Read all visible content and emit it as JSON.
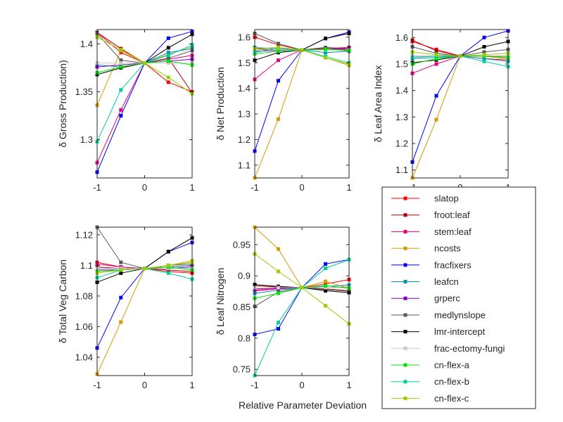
{
  "figure": {
    "xlabel": "Relative Parameter Deviation"
  },
  "chart_data": [
    {
      "type": "line",
      "ylabel": "δ Gross Production)",
      "x": [
        -1,
        -0.5,
        0,
        0.5,
        1
      ],
      "xlim": [
        -1,
        1
      ],
      "ylim": [
        1.26,
        1.415
      ],
      "xticks": [
        "-1",
        "0",
        "1"
      ],
      "yticks": [
        "1.3",
        "1.35",
        "1.4"
      ],
      "ytick_values": [
        1.3,
        1.35,
        1.4
      ],
      "series": [
        {
          "name": "slatop",
          "values": [
            1.412,
            1.391,
            1.38,
            1.36,
            1.35
          ]
        },
        {
          "name": "froot:leaf",
          "values": [
            1.412,
            1.395,
            1.38,
            1.385,
            1.349
          ]
        },
        {
          "name": "stem:leaf",
          "values": [
            1.276,
            1.331,
            1.38,
            1.384,
            1.388
          ]
        },
        {
          "name": "ncosts",
          "values": [
            1.336,
            1.393,
            1.38,
            1.389,
            1.397
          ]
        },
        {
          "name": "fracfixers",
          "values": [
            1.266,
            1.325,
            1.38,
            1.406,
            1.413
          ]
        },
        {
          "name": "leafcn",
          "values": [
            1.378,
            1.376,
            1.38,
            1.391,
            1.395
          ]
        },
        {
          "name": "grperc",
          "values": [
            1.376,
            1.378,
            1.38,
            1.382,
            1.384
          ]
        },
        {
          "name": "medlynslope",
          "values": [
            1.411,
            1.383,
            1.38,
            1.385,
            1.393
          ]
        },
        {
          "name": "lmr-intercept",
          "values": [
            1.368,
            1.375,
            1.38,
            1.396,
            1.41
          ]
        },
        {
          "name": "frac-ectomy-fungi",
          "values": [
            1.38,
            1.38,
            1.38,
            1.38,
            1.38
          ]
        },
        {
          "name": "cn-flex-a",
          "values": [
            1.37,
            1.376,
            1.38,
            1.382,
            1.378
          ]
        },
        {
          "name": "cn-flex-b",
          "values": [
            1.298,
            1.352,
            1.38,
            1.388,
            1.399
          ]
        },
        {
          "name": "cn-flex-c",
          "values": [
            1.407,
            1.394,
            1.38,
            1.365,
            1.348
          ]
        }
      ]
    },
    {
      "type": "line",
      "ylabel": "δ Net Production",
      "x": [
        -1,
        -0.5,
        0,
        0.5,
        1
      ],
      "xlim": [
        -1,
        1
      ],
      "ylim": [
        1.05,
        1.63
      ],
      "xticks": [
        "-1",
        "0",
        "1"
      ],
      "yticks": [
        "1.1",
        "1.2",
        "1.3",
        "1.4",
        "1.5",
        "1.6"
      ],
      "ytick_values": [
        1.1,
        1.2,
        1.3,
        1.4,
        1.5,
        1.6
      ],
      "series": [
        {
          "name": "slatop",
          "values": [
            1.6,
            1.57,
            1.55,
            1.56,
            1.55
          ]
        },
        {
          "name": "froot:leaf",
          "values": [
            1.555,
            1.55,
            1.55,
            1.556,
            1.56
          ]
        },
        {
          "name": "stem:leaf",
          "values": [
            1.435,
            1.51,
            1.55,
            1.56,
            1.555
          ]
        },
        {
          "name": "ncosts",
          "values": [
            1.05,
            1.28,
            1.55,
            1.52,
            1.49
          ]
        },
        {
          "name": "fracfixers",
          "values": [
            1.155,
            1.43,
            1.55,
            1.595,
            1.62
          ]
        },
        {
          "name": "leafcn",
          "values": [
            1.56,
            1.555,
            1.55,
            1.54,
            1.545
          ]
        },
        {
          "name": "grperc",
          "values": [
            1.545,
            1.548,
            1.55,
            1.552,
            1.555
          ]
        },
        {
          "name": "medlynslope",
          "values": [
            1.615,
            1.575,
            1.55,
            1.56,
            1.545
          ]
        },
        {
          "name": "lmr-intercept",
          "values": [
            1.51,
            1.54,
            1.55,
            1.595,
            1.615
          ]
        },
        {
          "name": "frac-ectomy-fungi",
          "values": [
            1.55,
            1.55,
            1.55,
            1.55,
            1.55
          ]
        },
        {
          "name": "cn-flex-a",
          "values": [
            1.535,
            1.545,
            1.55,
            1.553,
            1.548
          ]
        },
        {
          "name": "cn-flex-b",
          "values": [
            1.54,
            1.56,
            1.55,
            1.525,
            1.5
          ]
        },
        {
          "name": "cn-flex-c",
          "values": [
            1.555,
            1.56,
            1.55,
            1.52,
            1.495
          ]
        }
      ]
    },
    {
      "type": "line",
      "ylabel": "δ Leaf Area Index",
      "x": [
        -1,
        -0.5,
        0,
        0.5,
        1
      ],
      "xlim": [
        -1,
        1
      ],
      "ylim": [
        1.07,
        1.63
      ],
      "xticks": [
        "-1",
        "0",
        "1"
      ],
      "yticks": [
        "1.1",
        "1.2",
        "1.3",
        "1.4",
        "1.5",
        "1.6"
      ],
      "ytick_values": [
        1.1,
        1.2,
        1.3,
        1.4,
        1.5,
        1.6
      ],
      "series": [
        {
          "name": "slatop",
          "values": [
            1.585,
            1.555,
            1.53,
            1.52,
            1.515
          ]
        },
        {
          "name": "froot:leaf",
          "values": [
            1.59,
            1.55,
            1.53,
            1.53,
            1.52
          ]
        },
        {
          "name": "stem:leaf",
          "values": [
            1.465,
            1.5,
            1.53,
            1.53,
            1.53
          ]
        },
        {
          "name": "ncosts",
          "values": [
            1.07,
            1.29,
            1.53,
            1.53,
            1.52
          ]
        },
        {
          "name": "fracfixers",
          "values": [
            1.13,
            1.38,
            1.53,
            1.6,
            1.625
          ]
        },
        {
          "name": "leafcn",
          "values": [
            1.52,
            1.525,
            1.53,
            1.52,
            1.51
          ]
        },
        {
          "name": "grperc",
          "values": [
            1.53,
            1.53,
            1.53,
            1.53,
            1.53
          ]
        },
        {
          "name": "medlynslope",
          "values": [
            1.565,
            1.54,
            1.53,
            1.545,
            1.555
          ]
        },
        {
          "name": "lmr-intercept",
          "values": [
            1.505,
            1.515,
            1.53,
            1.565,
            1.585
          ]
        },
        {
          "name": "frac-ectomy-fungi",
          "values": [
            1.53,
            1.53,
            1.53,
            1.53,
            1.53
          ]
        },
        {
          "name": "cn-flex-a",
          "values": [
            1.5,
            1.52,
            1.53,
            1.53,
            1.525
          ]
        },
        {
          "name": "cn-flex-b",
          "values": [
            1.525,
            1.53,
            1.53,
            1.51,
            1.49
          ]
        },
        {
          "name": "cn-flex-c",
          "values": [
            1.545,
            1.535,
            1.53,
            1.535,
            1.54
          ]
        }
      ]
    },
    {
      "type": "line",
      "ylabel": "δ Total Veg Carbon",
      "x": [
        -1,
        -0.5,
        0,
        0.5,
        1
      ],
      "xlim": [
        -1,
        1
      ],
      "ylim": [
        1.028,
        1.125
      ],
      "xticks": [
        "-1",
        "0",
        "1"
      ],
      "yticks": [
        "1.04",
        "1.06",
        "1.08",
        "1.1",
        "1.12"
      ],
      "ytick_values": [
        1.04,
        1.06,
        1.08,
        1.1,
        1.12
      ],
      "series": [
        {
          "name": "slatop",
          "values": [
            1.102,
            1.099,
            1.098,
            1.096,
            1.095
          ]
        },
        {
          "name": "froot:leaf",
          "values": [
            1.099,
            1.098,
            1.098,
            1.097,
            1.096
          ]
        },
        {
          "name": "stem:leaf",
          "values": [
            1.101,
            1.099,
            1.098,
            1.099,
            1.1
          ]
        },
        {
          "name": "ncosts",
          "values": [
            1.029,
            1.063,
            1.098,
            1.1,
            1.103
          ]
        },
        {
          "name": "fracfixers",
          "values": [
            1.046,
            1.079,
            1.098,
            1.109,
            1.115
          ]
        },
        {
          "name": "leafcn",
          "values": [
            1.098,
            1.098,
            1.098,
            1.099,
            1.1
          ]
        },
        {
          "name": "grperc",
          "values": [
            1.097,
            1.097,
            1.098,
            1.098,
            1.099
          ]
        },
        {
          "name": "medlynslope",
          "values": [
            1.125,
            1.102,
            1.098,
            1.1,
            1.101
          ]
        },
        {
          "name": "lmr-intercept",
          "values": [
            1.089,
            1.095,
            1.098,
            1.109,
            1.118
          ]
        },
        {
          "name": "frac-ectomy-fungi",
          "values": [
            1.098,
            1.098,
            1.098,
            1.098,
            1.098
          ]
        },
        {
          "name": "cn-flex-a",
          "values": [
            1.096,
            1.097,
            1.098,
            1.099,
            1.097
          ]
        },
        {
          "name": "cn-flex-b",
          "values": [
            1.092,
            1.097,
            1.098,
            1.095,
            1.091
          ]
        },
        {
          "name": "cn-flex-c",
          "values": [
            1.095,
            1.097,
            1.098,
            1.1,
            1.102
          ]
        }
      ]
    },
    {
      "type": "line",
      "ylabel": "δ Leaf Nitrogen",
      "x": [
        -1,
        -0.5,
        0,
        0.5,
        1
      ],
      "xlim": [
        -1,
        1
      ],
      "ylim": [
        0.74,
        0.978
      ],
      "xticks": [
        "-1",
        "0",
        "1"
      ],
      "yticks": [
        "0.75",
        "0.8",
        "0.85",
        "0.9",
        "0.95"
      ],
      "ytick_values": [
        0.75,
        0.8,
        0.85,
        0.9,
        0.95
      ],
      "series": [
        {
          "name": "slatop",
          "values": [
            0.877,
            0.879,
            0.881,
            0.887,
            0.894
          ]
        },
        {
          "name": "froot:leaf",
          "values": [
            0.884,
            0.882,
            0.881,
            0.879,
            0.876
          ]
        },
        {
          "name": "stem:leaf",
          "values": [
            0.876,
            0.879,
            0.881,
            0.881,
            0.882
          ]
        },
        {
          "name": "ncosts",
          "values": [
            0.978,
            0.943,
            0.881,
            0.891,
            0.88
          ]
        },
        {
          "name": "fracfixers",
          "values": [
            0.806,
            0.815,
            0.881,
            0.919,
            0.926
          ]
        },
        {
          "name": "leafcn",
          "values": [
            0.872,
            0.877,
            0.881,
            0.883,
            0.885
          ]
        },
        {
          "name": "grperc",
          "values": [
            0.879,
            0.88,
            0.881,
            0.881,
            0.881
          ]
        },
        {
          "name": "medlynslope",
          "values": [
            0.851,
            0.874,
            0.881,
            0.878,
            0.875
          ]
        },
        {
          "name": "lmr-intercept",
          "values": [
            0.886,
            0.883,
            0.881,
            0.876,
            0.873
          ]
        },
        {
          "name": "frac-ectomy-fungi",
          "values": [
            0.881,
            0.881,
            0.881,
            0.881,
            0.881
          ]
        },
        {
          "name": "cn-flex-a",
          "values": [
            0.864,
            0.872,
            0.881,
            0.884,
            0.88
          ]
        },
        {
          "name": "cn-flex-b",
          "values": [
            0.74,
            0.825,
            0.881,
            0.912,
            0.926
          ]
        },
        {
          "name": "cn-flex-c",
          "values": [
            0.935,
            0.907,
            0.881,
            0.852,
            0.823
          ]
        }
      ]
    }
  ],
  "legend": {
    "placement": "bottom-right",
    "entries": [
      {
        "label": "slatop",
        "color": "#ff0000"
      },
      {
        "label": "froot:leaf",
        "color": "#b30000"
      },
      {
        "label": "stem:leaf",
        "color": "#e6007e"
      },
      {
        "label": "ncosts",
        "color": "#d49a00"
      },
      {
        "label": "fracfixers",
        "color": "#0000ff"
      },
      {
        "label": "leafcn",
        "color": "#0095b6"
      },
      {
        "label": "grperc",
        "color": "#7f00c8"
      },
      {
        "label": "medlynslope",
        "color": "#595959"
      },
      {
        "label": "lmr-intercept",
        "color": "#000000"
      },
      {
        "label": "frac-ectomy-fungi",
        "color": "#c8c8c8"
      },
      {
        "label": "cn-flex-a",
        "color": "#00e600"
      },
      {
        "label": "cn-flex-b",
        "color": "#00d0a0"
      },
      {
        "label": "cn-flex-c",
        "color": "#9acd00"
      }
    ]
  }
}
